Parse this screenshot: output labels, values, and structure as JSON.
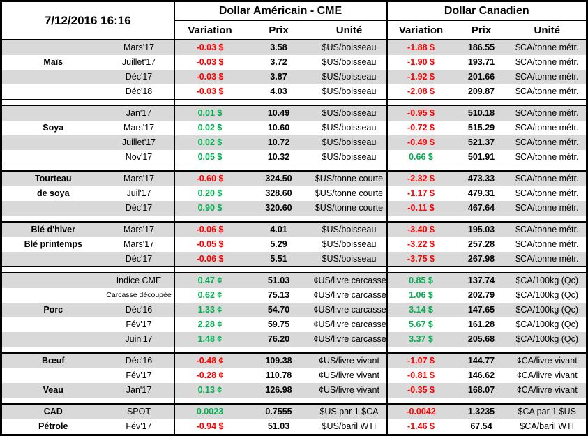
{
  "header": {
    "timestamp": "7/12/2016 16:16",
    "usd_section": "Dollar Américain - CME",
    "cad_section": "Dollar Canadien",
    "columns": {
      "variation": "Variation",
      "prix": "Prix",
      "unite": "Unité"
    }
  },
  "colors": {
    "negative": "#FF0000",
    "positive": "#00B050",
    "row_stripe": "#D9D9D9",
    "border": "#000000"
  },
  "table": {
    "groups": [
      {
        "name": "Maïs",
        "rows": [
          {
            "commodity": "",
            "contract": "Mars'17",
            "us": {
              "variation": "-0.03 $",
              "direction": "down",
              "prix": "3.58",
              "unite": "$US/boisseau"
            },
            "ca": {
              "variation": "-1.88 $",
              "direction": "down",
              "prix": "186.55",
              "unite": "$CA/tonne métr."
            }
          },
          {
            "commodity": "Maïs",
            "contract": "Juillet'17",
            "us": {
              "variation": "-0.03 $",
              "direction": "down",
              "prix": "3.72",
              "unite": "$US/boisseau"
            },
            "ca": {
              "variation": "-1.90 $",
              "direction": "down",
              "prix": "193.71",
              "unite": "$CA/tonne métr."
            }
          },
          {
            "commodity": "",
            "contract": "Déc'17",
            "us": {
              "variation": "-0.03 $",
              "direction": "down",
              "prix": "3.87",
              "unite": "$US/boisseau"
            },
            "ca": {
              "variation": "-1.92 $",
              "direction": "down",
              "prix": "201.66",
              "unite": "$CA/tonne métr."
            }
          },
          {
            "commodity": "",
            "contract": "Déc'18",
            "us": {
              "variation": "-0.03 $",
              "direction": "down",
              "prix": "4.03",
              "unite": "$US/boisseau"
            },
            "ca": {
              "variation": "-2.08 $",
              "direction": "down",
              "prix": "209.87",
              "unite": "$CA/tonne métr."
            }
          }
        ]
      },
      {
        "name": "Soya",
        "rows": [
          {
            "commodity": "",
            "contract": "Jan'17",
            "us": {
              "variation": "0.01 $",
              "direction": "up",
              "prix": "10.49",
              "unite": "$US/boisseau"
            },
            "ca": {
              "variation": "-0.95 $",
              "direction": "down",
              "prix": "510.18",
              "unite": "$CA/tonne métr."
            }
          },
          {
            "commodity": "Soya",
            "contract": "Mars'17",
            "us": {
              "variation": "0.02 $",
              "direction": "up",
              "prix": "10.60",
              "unite": "$US/boisseau"
            },
            "ca": {
              "variation": "-0.72 $",
              "direction": "down",
              "prix": "515.29",
              "unite": "$CA/tonne métr."
            }
          },
          {
            "commodity": "",
            "contract": "Juillet'17",
            "us": {
              "variation": "0.02 $",
              "direction": "up",
              "prix": "10.72",
              "unite": "$US/boisseau"
            },
            "ca": {
              "variation": "-0.49 $",
              "direction": "down",
              "prix": "521.37",
              "unite": "$CA/tonne métr."
            }
          },
          {
            "commodity": "",
            "contract": "Nov'17",
            "us": {
              "variation": "0.05 $",
              "direction": "up",
              "prix": "10.32",
              "unite": "$US/boisseau"
            },
            "ca": {
              "variation": "0.66 $",
              "direction": "up",
              "prix": "501.91",
              "unite": "$CA/tonne métr."
            }
          }
        ]
      },
      {
        "name": "Tourteau de soya",
        "rows": [
          {
            "commodity": "Tourteau",
            "contract": "Mars'17",
            "us": {
              "variation": "-0.60 $",
              "direction": "down",
              "prix": "324.50",
              "unite": "$US/tonne courte"
            },
            "ca": {
              "variation": "-2.32 $",
              "direction": "down",
              "prix": "473.33",
              "unite": "$CA/tonne métr."
            }
          },
          {
            "commodity": "de soya",
            "contract": "Juil'17",
            "us": {
              "variation": "0.20 $",
              "direction": "up",
              "prix": "328.60",
              "unite": "$US/tonne courte"
            },
            "ca": {
              "variation": "-1.17 $",
              "direction": "down",
              "prix": "479.31",
              "unite": "$CA/tonne métr."
            }
          },
          {
            "commodity": "",
            "contract": "Déc'17",
            "us": {
              "variation": "0.90 $",
              "direction": "up",
              "prix": "320.60",
              "unite": "$US/tonne courte"
            },
            "ca": {
              "variation": "-0.11 $",
              "direction": "down",
              "prix": "467.64",
              "unite": "$CA/tonne métr."
            }
          }
        ]
      },
      {
        "name": "Blé",
        "rows": [
          {
            "commodity": "Blé d'hiver",
            "contract": "Mars'17",
            "us": {
              "variation": "-0.06 $",
              "direction": "down",
              "prix": "4.01",
              "unite": "$US/boisseau"
            },
            "ca": {
              "variation": "-3.40 $",
              "direction": "down",
              "prix": "195.03",
              "unite": "$CA/tonne métr."
            }
          },
          {
            "commodity": "Blé printemps",
            "contract": "Mars'17",
            "us": {
              "variation": "-0.05 $",
              "direction": "down",
              "prix": "5.29",
              "unite": "$US/boisseau"
            },
            "ca": {
              "variation": "-3.22 $",
              "direction": "down",
              "prix": "257.28",
              "unite": "$CA/tonne métr."
            }
          },
          {
            "commodity": "",
            "contract": "Déc'17",
            "us": {
              "variation": "-0.06 $",
              "direction": "down",
              "prix": "5.51",
              "unite": "$US/boisseau"
            },
            "ca": {
              "variation": "-3.75 $",
              "direction": "down",
              "prix": "267.98",
              "unite": "$CA/tonne métr."
            }
          }
        ]
      },
      {
        "name": "Porc",
        "rows": [
          {
            "commodity": "",
            "contract": "Indice CME",
            "us": {
              "variation": "0.47 ¢",
              "direction": "up",
              "prix": "51.03",
              "unite": "¢US/livre carcasse"
            },
            "ca": {
              "variation": "0.85 $",
              "direction": "up",
              "prix": "137.74",
              "unite": "$CA/100kg (Qc)"
            }
          },
          {
            "commodity": "",
            "contract": "Carcasse découpée",
            "contract_small": true,
            "us": {
              "variation": "0.62 ¢",
              "direction": "up",
              "prix": "75.13",
              "unite": "¢US/livre carcasse"
            },
            "ca": {
              "variation": "1.06 $",
              "direction": "up",
              "prix": "202.79",
              "unite": "$CA/100kg (Qc)"
            }
          },
          {
            "commodity": "Porc",
            "contract": "Déc'16",
            "us": {
              "variation": "1.33 ¢",
              "direction": "up",
              "prix": "54.70",
              "unite": "¢US/livre carcasse"
            },
            "ca": {
              "variation": "3.14 $",
              "direction": "up",
              "prix": "147.65",
              "unite": "$CA/100kg (Qc)"
            }
          },
          {
            "commodity": "",
            "contract": "Fév'17",
            "us": {
              "variation": "2.28 ¢",
              "direction": "up",
              "prix": "59.75",
              "unite": "¢US/livre carcasse"
            },
            "ca": {
              "variation": "5.67 $",
              "direction": "up",
              "prix": "161.28",
              "unite": "$CA/100kg (Qc)"
            }
          },
          {
            "commodity": "",
            "contract": "Juin'17",
            "us": {
              "variation": "1.48 ¢",
              "direction": "up",
              "prix": "76.20",
              "unite": "¢US/livre carcasse"
            },
            "ca": {
              "variation": "3.37 $",
              "direction": "up",
              "prix": "205.68",
              "unite": "$CA/100kg (Qc)"
            }
          }
        ]
      },
      {
        "name": "Bœuf / Veau",
        "rows": [
          {
            "commodity": "Bœuf",
            "contract": "Déc'16",
            "us": {
              "variation": "-0.48 ¢",
              "direction": "down",
              "prix": "109.38",
              "unite": "¢US/livre vivant"
            },
            "ca": {
              "variation": "-1.07 $",
              "direction": "down",
              "prix": "144.77",
              "unite": "¢CA/livre vivant"
            }
          },
          {
            "commodity": "",
            "contract": "Fév'17",
            "us": {
              "variation": "-0.28 ¢",
              "direction": "down",
              "prix": "110.78",
              "unite": "¢US/livre vivant"
            },
            "ca": {
              "variation": "-0.81 $",
              "direction": "down",
              "prix": "146.62",
              "unite": "¢CA/livre vivant"
            }
          },
          {
            "commodity": "Veau",
            "contract": "Jan'17",
            "us": {
              "variation": "0.13 ¢",
              "direction": "up",
              "prix": "126.98",
              "unite": "¢US/livre vivant"
            },
            "ca": {
              "variation": "-0.35 $",
              "direction": "down",
              "prix": "168.07",
              "unite": "¢CA/livre vivant"
            }
          }
        ]
      },
      {
        "name": "CAD / Pétrole",
        "rows": [
          {
            "commodity": "CAD",
            "contract": "SPOT",
            "us": {
              "variation": "0.0023",
              "direction": "up",
              "prix": "0.7555",
              "unite": "$US par 1 $CA"
            },
            "ca": {
              "variation": "-0.0042",
              "direction": "down",
              "prix": "1.3235",
              "unite": "$CA par 1 $US"
            }
          },
          {
            "commodity": "Pétrole",
            "contract": "Fév'17",
            "us": {
              "variation": "-0.94 $",
              "direction": "down",
              "prix": "51.03",
              "unite": "$US/baril WTI"
            },
            "ca": {
              "variation": "-1.46 $",
              "direction": "down",
              "prix": "67.54",
              "unite": "$CA/baril WTI"
            }
          }
        ]
      }
    ]
  }
}
